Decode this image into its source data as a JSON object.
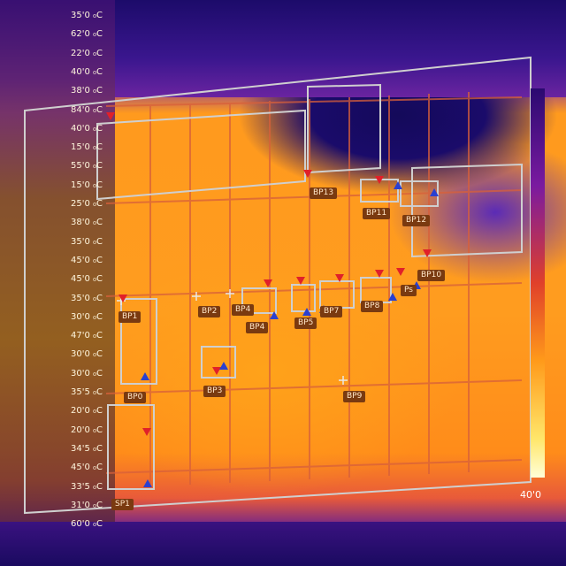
{
  "left_panel": {
    "rows": [
      {
        "name": "",
        "label": "",
        "value": "35'0 ₀C"
      },
      {
        "name": "",
        "label": "",
        "value": "62'0 ₀C"
      },
      {
        "name": "",
        "label": "",
        "value": "22'0 ₀C"
      },
      {
        "name": "",
        "label": "",
        "value": "40'0 ₀C"
      },
      {
        "name": "",
        "label": "",
        "value": "38'0 ₀C"
      },
      {
        "name": "",
        "label": "",
        "value": "84'0 ₀C"
      },
      {
        "name": "",
        "label": "",
        "value": "40'0 ₀C"
      },
      {
        "name": "",
        "label": "",
        "value": "15'0 ₀C"
      },
      {
        "name": "",
        "label": "",
        "value": "55'0 ₀C"
      },
      {
        "name": "",
        "label": "",
        "value": "15'0 ₀C"
      },
      {
        "name": "",
        "label": "",
        "value": "25'0 ₀C"
      },
      {
        "name": "",
        "label": "",
        "value": "38'0 ₀C"
      },
      {
        "name": "",
        "label": "",
        "value": "35'0 ₀C"
      },
      {
        "name": "",
        "label": "",
        "value": "45'0 ₀C"
      },
      {
        "name": "",
        "label": "",
        "value": "45'0 ₀C"
      },
      {
        "name": "",
        "label": "",
        "value": "35'0 ₀C"
      },
      {
        "name": "",
        "label": "",
        "value": "30'0 ₀C"
      },
      {
        "name": "",
        "label": "",
        "value": "47'0 ₀C"
      },
      {
        "name": "",
        "label": "",
        "value": "30'0 ₀C"
      },
      {
        "name": "",
        "label": "",
        "value": "30'0 ₀C"
      },
      {
        "name": "",
        "label": "",
        "value": "35'5 ₀C"
      },
      {
        "name": "",
        "label": "",
        "value": "20'0 ₀C"
      },
      {
        "name": "",
        "label": "",
        "value": "20'0 ₀C"
      },
      {
        "name": "",
        "label": "",
        "value": "34'5 ₀C"
      },
      {
        "name": "",
        "label": "",
        "value": "45'0 ₀C"
      },
      {
        "name": "",
        "label": "",
        "value": "33'5 ₀C"
      },
      {
        "name": "",
        "label": "",
        "value": "31'0 ₀C"
      },
      {
        "name": "",
        "label": "",
        "value": "60'0 ₀C"
      }
    ]
  },
  "scale": {
    "value": "40'0"
  },
  "tags": {
    "bp13": "BP13",
    "bp13b": "BP13",
    "bp11": "BP11",
    "bp12": "BP12",
    "bp1": "BP1",
    "bp2": "BP2",
    "bp5": "BP5",
    "bp4": "BP4",
    "bp6": "BP6",
    "bp7": "BP7",
    "bp8": "BP8",
    "bp9": "BP9",
    "ps": "Ps",
    "bp3": "BP3",
    "bp10": "BP10",
    "bp14": "BP4",
    "bp0": "BP0",
    "sp": "SP1"
  },
  "colors": {
    "hot": "#ff9c1f",
    "cold": "#1a0b6a",
    "marker_max": "#e0202a",
    "marker_min": "#2a40d0"
  }
}
